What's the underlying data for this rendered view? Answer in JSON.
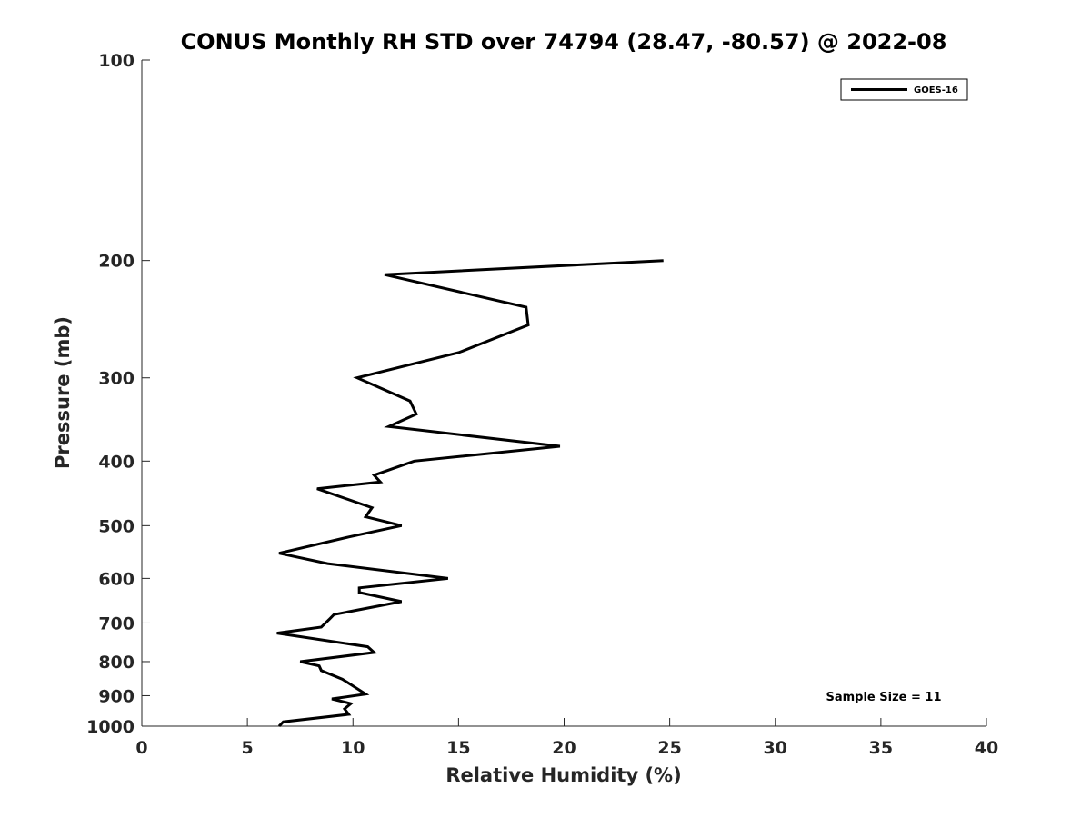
{
  "chart_data": {
    "type": "line",
    "title": "CONUS Monthly RH STD over 74794 (28.47, -80.57) @ 2022-08",
    "xlabel": "Relative Humidity (%)",
    "ylabel": "Pressure (mb)",
    "xlim": [
      0,
      40
    ],
    "ylim": [
      1000,
      100
    ],
    "yscale": "log",
    "y_direction": "reversed",
    "grid": false,
    "legend_position": "top-right",
    "xticks": [
      0,
      5,
      10,
      15,
      20,
      25,
      30,
      35,
      40
    ],
    "xtick_labels": [
      "0",
      "5",
      "10",
      "15",
      "20",
      "25",
      "30",
      "35",
      "40"
    ],
    "yticks": [
      100,
      200,
      300,
      400,
      500,
      600,
      700,
      800,
      900,
      1000
    ],
    "ytick_labels": [
      "100",
      "200",
      "300",
      "400",
      "500",
      "600",
      "700",
      "800",
      "900",
      "1000"
    ],
    "series": [
      {
        "name": "GOES-16",
        "color": "#000000",
        "points": [
          [
            6.5,
            1000
          ],
          [
            6.7,
            985
          ],
          [
            9.8,
            960
          ],
          [
            9.6,
            942
          ],
          [
            9.9,
            925
          ],
          [
            9.0,
            910
          ],
          [
            10.6,
            895
          ],
          [
            10.0,
            870
          ],
          [
            9.5,
            850
          ],
          [
            8.5,
            825
          ],
          [
            8.4,
            812
          ],
          [
            7.5,
            800
          ],
          [
            11.0,
            775
          ],
          [
            10.7,
            760
          ],
          [
            6.4,
            725
          ],
          [
            8.5,
            710
          ],
          [
            8.9,
            690
          ],
          [
            9.1,
            680
          ],
          [
            12.3,
            650
          ],
          [
            10.3,
            630
          ],
          [
            10.3,
            620
          ],
          [
            14.5,
            600
          ],
          [
            8.8,
            570
          ],
          [
            6.5,
            550
          ],
          [
            9.8,
            520
          ],
          [
            12.3,
            500
          ],
          [
            10.6,
            485
          ],
          [
            10.9,
            470
          ],
          [
            8.3,
            440
          ],
          [
            11.3,
            430
          ],
          [
            11.0,
            420
          ],
          [
            12.9,
            400
          ],
          [
            19.8,
            380
          ],
          [
            11.7,
            355
          ],
          [
            13.0,
            340
          ],
          [
            12.7,
            325
          ],
          [
            10.2,
            300
          ],
          [
            15.0,
            275
          ],
          [
            18.3,
            250
          ],
          [
            18.2,
            235
          ],
          [
            11.5,
            210
          ],
          [
            24.7,
            200
          ]
        ]
      }
    ],
    "annotation": "Sample Size = 11"
  }
}
